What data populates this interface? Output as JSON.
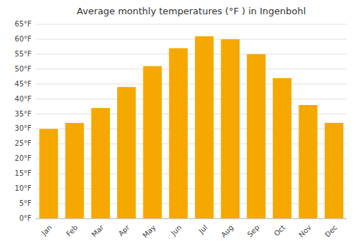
{
  "chart_data": {
    "type": "bar",
    "title": "Average monthly temperatures (°F ) in Ingenbohl",
    "categories": [
      "Jan",
      "Feb",
      "Mar",
      "Apr",
      "May",
      "Jun",
      "Jul",
      "Aug",
      "Sep",
      "Oct",
      "Nov",
      "Dec"
    ],
    "values": [
      30,
      32,
      37,
      44,
      51,
      57,
      61,
      60,
      55,
      47,
      38,
      32
    ],
    "color": "#F5A800",
    "ylim": [
      0,
      65
    ],
    "yticks": [
      {
        "value": 0,
        "label": "0°F"
      },
      {
        "value": 5,
        "label": "5°F"
      },
      {
        "value": 10,
        "label": "10°F"
      },
      {
        "value": 15,
        "label": "15°F"
      },
      {
        "value": 20,
        "label": "20°F"
      },
      {
        "value": 25,
        "label": "25°F"
      },
      {
        "value": 30,
        "label": "30°F"
      },
      {
        "value": 35,
        "label": "35°F"
      },
      {
        "value": 40,
        "label": "40°F"
      },
      {
        "value": 45,
        "label": "45°F"
      },
      {
        "value": 50,
        "label": "50°F"
      },
      {
        "value": 55,
        "label": "55°F"
      },
      {
        "value": 60,
        "label": "60°F"
      },
      {
        "value": 65,
        "label": "65°F"
      }
    ],
    "grid": true
  }
}
